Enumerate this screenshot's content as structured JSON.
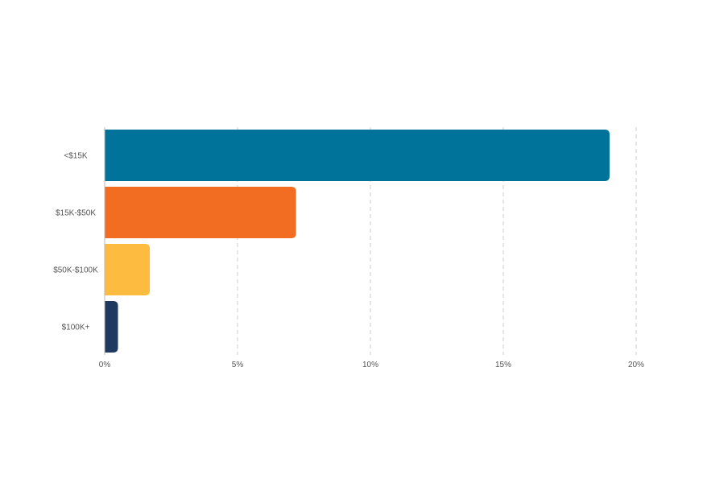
{
  "chart_data": {
    "type": "bar",
    "orientation": "horizontal",
    "title": "",
    "xlabel": "",
    "ylabel": "",
    "categories": [
      "<$15K",
      "$15K-$50K",
      "$50K-$100K",
      "$100K+"
    ],
    "values": [
      19.0,
      7.2,
      1.7,
      0.5
    ],
    "colors": [
      "#00739a",
      "#f26d21",
      "#fdbb40",
      "#1f3a60"
    ],
    "xlim": [
      0,
      20
    ],
    "x_ticks": [
      0,
      5,
      10,
      15,
      20
    ],
    "x_tick_labels": [
      "0%",
      "5%",
      "10%",
      "15%",
      "20%"
    ],
    "grid": true,
    "grid_style": "dashed vertical",
    "legend": "none"
  }
}
